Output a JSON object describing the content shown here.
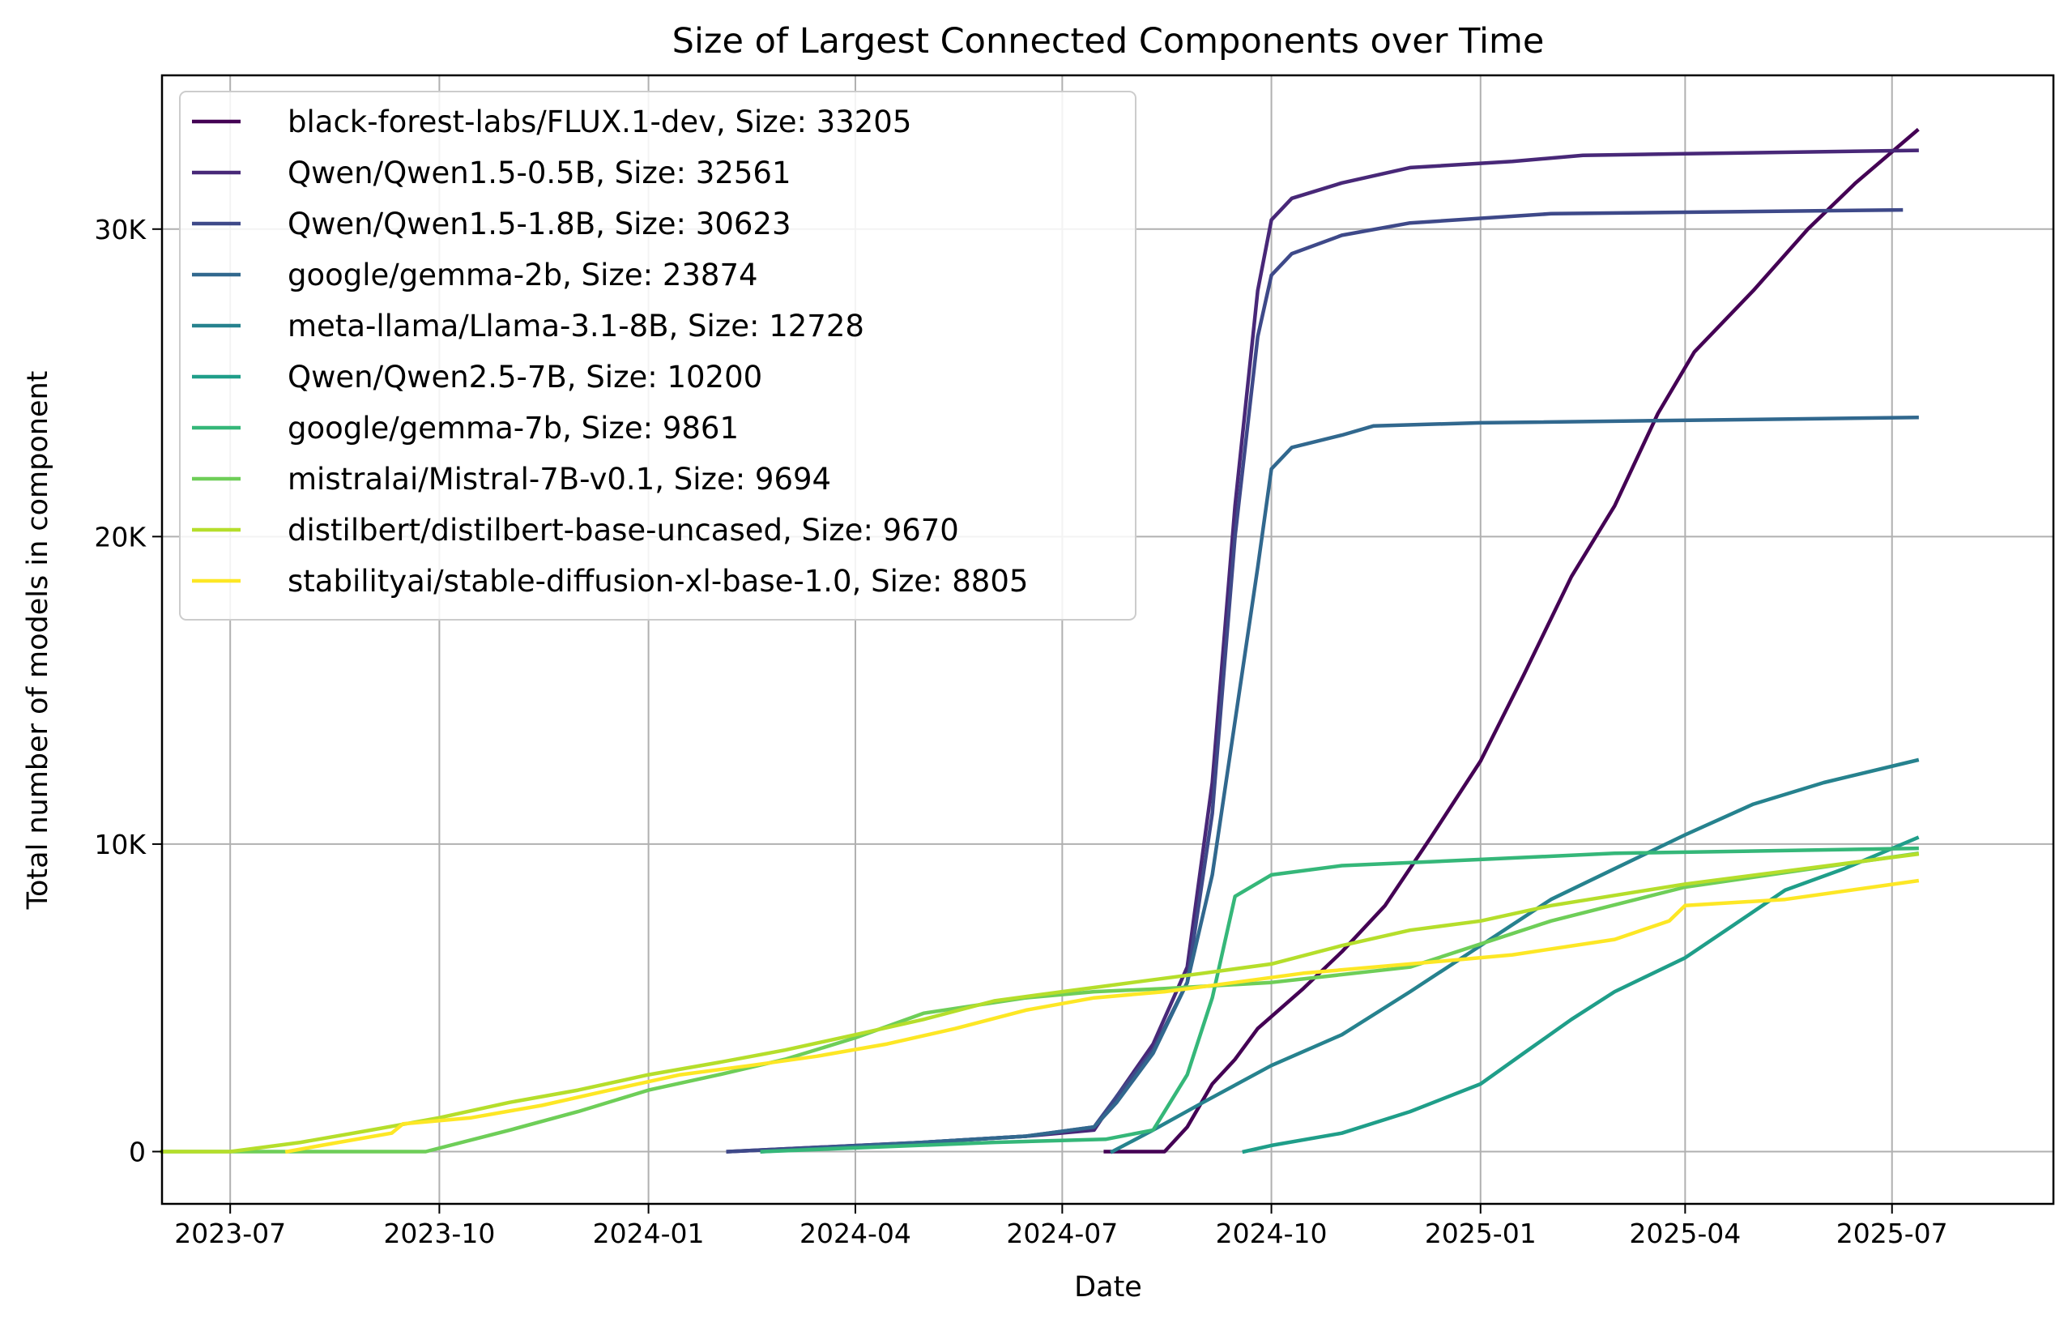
{
  "chart_data": {
    "type": "line",
    "title": "Size of Largest Connected Components over Time",
    "xlabel": "Date",
    "ylabel": "Total number of models in component",
    "x_ticks": [
      "2023-07",
      "2023-10",
      "2024-01",
      "2024-04",
      "2024-07",
      "2024-10",
      "2025-01",
      "2025-04",
      "2025-07"
    ],
    "y_ticks": [
      {
        "value": 0,
        "label": "0"
      },
      {
        "value": 10000,
        "label": "10K"
      },
      {
        "value": 20000,
        "label": "20K"
      },
      {
        "value": 30000,
        "label": "30K"
      }
    ],
    "xlim": [
      "2023-06-01",
      "2025-09-10"
    ],
    "ylim": [
      -1700,
      35000
    ],
    "grid": true,
    "legend_position": "upper-left",
    "series": [
      {
        "name": "black-forest-labs/FLUX.1-dev, Size: 33205",
        "color": "#440154",
        "points": [
          [
            "2024-07-20",
            0
          ],
          [
            "2024-08-15",
            0
          ],
          [
            "2024-08-25",
            800
          ],
          [
            "2024-09-05",
            2200
          ],
          [
            "2024-09-15",
            3000
          ],
          [
            "2024-09-25",
            4000
          ],
          [
            "2024-10-15",
            5300
          ],
          [
            "2024-11-01",
            6500
          ],
          [
            "2024-11-20",
            8000
          ],
          [
            "2024-12-10",
            10200
          ],
          [
            "2025-01-01",
            12700
          ],
          [
            "2025-01-20",
            15500
          ],
          [
            "2025-02-10",
            18700
          ],
          [
            "2025-03-01",
            21000
          ],
          [
            "2025-03-20",
            24000
          ],
          [
            "2025-04-05",
            26000
          ],
          [
            "2025-05-01",
            28000
          ],
          [
            "2025-05-25",
            30000
          ],
          [
            "2025-06-15",
            31500
          ],
          [
            "2025-07-12",
            33205
          ]
        ]
      },
      {
        "name": "Qwen/Qwen1.5-0.5B, Size: 32561",
        "color": "#482878",
        "points": [
          [
            "2024-02-05",
            0
          ],
          [
            "2024-05-01",
            300
          ],
          [
            "2024-06-15",
            500
          ],
          [
            "2024-07-15",
            700
          ],
          [
            "2024-07-25",
            1800
          ],
          [
            "2024-08-10",
            3500
          ],
          [
            "2024-08-25",
            6000
          ],
          [
            "2024-09-05",
            12000
          ],
          [
            "2024-09-15",
            21000
          ],
          [
            "2024-09-25",
            28000
          ],
          [
            "2024-10-01",
            30300
          ],
          [
            "2024-10-10",
            31000
          ],
          [
            "2024-11-01",
            31500
          ],
          [
            "2024-12-01",
            32000
          ],
          [
            "2025-01-15",
            32200
          ],
          [
            "2025-02-15",
            32400
          ],
          [
            "2025-04-01",
            32450
          ],
          [
            "2025-07-12",
            32561
          ]
        ]
      },
      {
        "name": "Qwen/Qwen1.5-1.8B, Size: 30623",
        "color": "#3e4989",
        "points": [
          [
            "2024-02-05",
            0
          ],
          [
            "2024-05-01",
            300
          ],
          [
            "2024-06-15",
            500
          ],
          [
            "2024-07-15",
            800
          ],
          [
            "2024-07-25",
            1800
          ],
          [
            "2024-08-10",
            3300
          ],
          [
            "2024-08-25",
            5500
          ],
          [
            "2024-09-05",
            11000
          ],
          [
            "2024-09-15",
            20000
          ],
          [
            "2024-09-25",
            26500
          ],
          [
            "2024-10-01",
            28500
          ],
          [
            "2024-10-10",
            29200
          ],
          [
            "2024-11-01",
            29800
          ],
          [
            "2024-12-01",
            30200
          ],
          [
            "2025-02-01",
            30500
          ],
          [
            "2025-07-05",
            30623
          ]
        ]
      },
      {
        "name": "google/gemma-2b, Size: 23874",
        "color": "#31688e",
        "points": [
          [
            "2024-02-20",
            0
          ],
          [
            "2024-05-01",
            300
          ],
          [
            "2024-06-15",
            500
          ],
          [
            "2024-07-15",
            800
          ],
          [
            "2024-07-25",
            1600
          ],
          [
            "2024-08-10",
            3200
          ],
          [
            "2024-08-25",
            5500
          ],
          [
            "2024-09-05",
            9000
          ],
          [
            "2024-09-15",
            14000
          ],
          [
            "2024-09-25",
            19000
          ],
          [
            "2024-10-01",
            22200
          ],
          [
            "2024-10-10",
            22900
          ],
          [
            "2024-11-01",
            23300
          ],
          [
            "2024-11-15",
            23600
          ],
          [
            "2025-01-01",
            23700
          ],
          [
            "2025-07-12",
            23874
          ]
        ]
      },
      {
        "name": "meta-llama/Llama-3.1-8B, Size: 12728",
        "color": "#26828e",
        "points": [
          [
            "2024-07-23",
            0
          ],
          [
            "2024-08-10",
            700
          ],
          [
            "2024-09-01",
            1600
          ],
          [
            "2024-10-01",
            2800
          ],
          [
            "2024-11-01",
            3800
          ],
          [
            "2024-12-01",
            5200
          ],
          [
            "2025-01-01",
            6700
          ],
          [
            "2025-02-01",
            8200
          ],
          [
            "2025-03-01",
            9200
          ],
          [
            "2025-04-01",
            10300
          ],
          [
            "2025-05-01",
            11300
          ],
          [
            "2025-06-01",
            12000
          ],
          [
            "2025-07-12",
            12728
          ]
        ]
      },
      {
        "name": "Qwen/Qwen2.5-7B, Size: 10200",
        "color": "#1f9e89",
        "points": [
          [
            "2024-09-19",
            0
          ],
          [
            "2024-10-01",
            200
          ],
          [
            "2024-11-01",
            600
          ],
          [
            "2024-12-01",
            1300
          ],
          [
            "2025-01-01",
            2200
          ],
          [
            "2025-01-20",
            3200
          ],
          [
            "2025-02-10",
            4300
          ],
          [
            "2025-03-01",
            5200
          ],
          [
            "2025-04-01",
            6300
          ],
          [
            "2025-04-25",
            7500
          ],
          [
            "2025-05-15",
            8500
          ],
          [
            "2025-06-10",
            9200
          ],
          [
            "2025-07-12",
            10200
          ]
        ]
      },
      {
        "name": "google/gemma-7b, Size: 9861",
        "color": "#35b779",
        "points": [
          [
            "2024-02-20",
            0
          ],
          [
            "2024-06-01",
            300
          ],
          [
            "2024-07-20",
            400
          ],
          [
            "2024-08-10",
            700
          ],
          [
            "2024-08-25",
            2500
          ],
          [
            "2024-09-05",
            5000
          ],
          [
            "2024-09-15",
            8300
          ],
          [
            "2024-10-01",
            9000
          ],
          [
            "2024-11-01",
            9300
          ],
          [
            "2025-01-01",
            9500
          ],
          [
            "2025-03-01",
            9700
          ],
          [
            "2025-07-12",
            9861
          ]
        ]
      },
      {
        "name": "mistralai/Mistral-7B-v0.1, Size: 9694",
        "color": "#6ece58",
        "points": [
          [
            "2023-06-01",
            0
          ],
          [
            "2023-09-25",
            0
          ],
          [
            "2023-11-01",
            700
          ],
          [
            "2023-12-01",
            1300
          ],
          [
            "2024-01-01",
            2000
          ],
          [
            "2024-02-01",
            2500
          ],
          [
            "2024-03-01",
            3000
          ],
          [
            "2024-04-01",
            3700
          ],
          [
            "2024-05-01",
            4500
          ],
          [
            "2024-06-15",
            5000
          ],
          [
            "2024-07-15",
            5200
          ],
          [
            "2024-08-15",
            5300
          ],
          [
            "2024-10-01",
            5500
          ],
          [
            "2024-12-01",
            6000
          ],
          [
            "2025-02-01",
            7500
          ],
          [
            "2025-04-01",
            8600
          ],
          [
            "2025-07-12",
            9694
          ]
        ]
      },
      {
        "name": "distilbert/distilbert-base-uncased, Size: 9670",
        "color": "#b5de2b",
        "points": [
          [
            "2023-06-01",
            0
          ],
          [
            "2023-07-01",
            0
          ],
          [
            "2023-08-01",
            300
          ],
          [
            "2023-09-01",
            700
          ],
          [
            "2023-10-01",
            1100
          ],
          [
            "2023-11-01",
            1600
          ],
          [
            "2023-12-01",
            2000
          ],
          [
            "2024-01-01",
            2500
          ],
          [
            "2024-02-01",
            2900
          ],
          [
            "2024-03-01",
            3300
          ],
          [
            "2024-04-01",
            3800
          ],
          [
            "2024-05-01",
            4300
          ],
          [
            "2024-06-01",
            4900
          ],
          [
            "2024-07-01",
            5200
          ],
          [
            "2024-08-01",
            5500
          ],
          [
            "2024-09-01",
            5800
          ],
          [
            "2024-10-01",
            6100
          ],
          [
            "2024-11-01",
            6700
          ],
          [
            "2024-12-01",
            7200
          ],
          [
            "2025-01-01",
            7500
          ],
          [
            "2025-02-01",
            8000
          ],
          [
            "2025-04-01",
            8700
          ],
          [
            "2025-07-12",
            9670
          ]
        ]
      },
      {
        "name": "stabilityai/stable-diffusion-xl-base-1.0, Size: 8805",
        "color": "#fde725",
        "points": [
          [
            "2023-07-26",
            0
          ],
          [
            "2023-08-10",
            200
          ],
          [
            "2023-09-10",
            600
          ],
          [
            "2023-09-15",
            900
          ],
          [
            "2023-10-15",
            1100
          ],
          [
            "2023-11-15",
            1500
          ],
          [
            "2023-12-15",
            2000
          ],
          [
            "2024-01-15",
            2500
          ],
          [
            "2024-02-15",
            2800
          ],
          [
            "2024-03-15",
            3100
          ],
          [
            "2024-04-15",
            3500
          ],
          [
            "2024-05-15",
            4000
          ],
          [
            "2024-06-15",
            4600
          ],
          [
            "2024-07-15",
            5000
          ],
          [
            "2024-08-15",
            5200
          ],
          [
            "2024-09-15",
            5500
          ],
          [
            "2024-10-15",
            5800
          ],
          [
            "2024-12-01",
            6100
          ],
          [
            "2025-01-15",
            6400
          ],
          [
            "2025-03-01",
            6900
          ],
          [
            "2025-03-25",
            7500
          ],
          [
            "2025-04-01",
            8000
          ],
          [
            "2025-05-15",
            8200
          ],
          [
            "2025-07-12",
            8805
          ]
        ]
      }
    ]
  }
}
